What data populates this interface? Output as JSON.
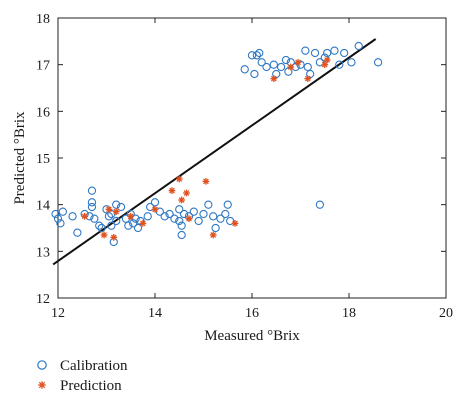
{
  "chart_data": {
    "type": "scatter",
    "title": "",
    "xlabel": "Measured °Brix",
    "ylabel": "Predicted °Brix",
    "xlim": [
      12,
      20
    ],
    "ylim": [
      12,
      18
    ],
    "xticks": [
      "12",
      "14",
      "16",
      "18",
      "20"
    ],
    "yticks": [
      "12",
      "13",
      "14",
      "15",
      "16",
      "17",
      "18"
    ],
    "grid": false,
    "legend_position": "bottom-left, below plot",
    "colors": {
      "calibration": "#2f78c4",
      "prediction": "#e0521e",
      "fit_line": "#111111",
      "axes": "#222222"
    },
    "fit_line": {
      "x": [
        11.9,
        18.55
      ],
      "y": [
        12.72,
        17.55
      ]
    },
    "series": [
      {
        "name": "Calibration",
        "marker": "open-circle",
        "points": [
          [
            11.95,
            13.8
          ],
          [
            12.0,
            13.7
          ],
          [
            12.05,
            13.6
          ],
          [
            12.1,
            13.85
          ],
          [
            12.3,
            13.75
          ],
          [
            12.4,
            13.4
          ],
          [
            12.55,
            13.8
          ],
          [
            12.65,
            13.75
          ],
          [
            12.7,
            14.3
          ],
          [
            12.7,
            14.05
          ],
          [
            12.7,
            13.95
          ],
          [
            12.75,
            13.7
          ],
          [
            12.85,
            13.55
          ],
          [
            12.9,
            13.5
          ],
          [
            13.0,
            13.9
          ],
          [
            13.05,
            13.75
          ],
          [
            13.1,
            13.8
          ],
          [
            13.1,
            13.55
          ],
          [
            13.15,
            13.2
          ],
          [
            13.2,
            13.65
          ],
          [
            13.2,
            14.0
          ],
          [
            13.3,
            13.95
          ],
          [
            13.4,
            13.7
          ],
          [
            13.45,
            13.55
          ],
          [
            13.5,
            13.8
          ],
          [
            13.55,
            13.6
          ],
          [
            13.6,
            13.7
          ],
          [
            13.65,
            13.5
          ],
          [
            13.7,
            13.65
          ],
          [
            13.85,
            13.75
          ],
          [
            13.9,
            13.95
          ],
          [
            14.0,
            14.05
          ],
          [
            14.1,
            13.85
          ],
          [
            14.2,
            13.75
          ],
          [
            14.3,
            13.8
          ],
          [
            14.4,
            13.7
          ],
          [
            14.5,
            13.65
          ],
          [
            14.5,
            13.9
          ],
          [
            14.55,
            13.55
          ],
          [
            14.55,
            13.35
          ],
          [
            14.6,
            13.8
          ],
          [
            14.7,
            13.75
          ],
          [
            14.8,
            13.85
          ],
          [
            14.9,
            13.65
          ],
          [
            15.0,
            13.8
          ],
          [
            15.1,
            14.0
          ],
          [
            15.2,
            13.75
          ],
          [
            15.25,
            13.5
          ],
          [
            15.35,
            13.7
          ],
          [
            15.45,
            13.8
          ],
          [
            15.5,
            14.0
          ],
          [
            15.55,
            13.65
          ],
          [
            15.85,
            16.9
          ],
          [
            16.0,
            17.2
          ],
          [
            16.05,
            16.8
          ],
          [
            16.1,
            17.2
          ],
          [
            16.15,
            17.25
          ],
          [
            16.2,
            17.05
          ],
          [
            16.3,
            16.95
          ],
          [
            16.45,
            17.0
          ],
          [
            16.5,
            16.8
          ],
          [
            16.6,
            16.95
          ],
          [
            16.7,
            17.1
          ],
          [
            16.75,
            16.85
          ],
          [
            16.8,
            17.05
          ],
          [
            16.9,
            16.95
          ],
          [
            17.0,
            17.0
          ],
          [
            17.1,
            17.3
          ],
          [
            17.15,
            16.95
          ],
          [
            17.2,
            16.8
          ],
          [
            17.3,
            17.25
          ],
          [
            17.4,
            17.05
          ],
          [
            17.5,
            17.15
          ],
          [
            17.55,
            17.25
          ],
          [
            17.7,
            17.3
          ],
          [
            17.8,
            17.0
          ],
          [
            17.9,
            17.25
          ],
          [
            18.05,
            17.05
          ],
          [
            18.2,
            17.4
          ],
          [
            18.6,
            17.05
          ],
          [
            17.4,
            14.0
          ]
        ]
      },
      {
        "name": "Prediction",
        "marker": "asterisk",
        "points": [
          [
            12.55,
            13.75
          ],
          [
            12.95,
            13.35
          ],
          [
            13.05,
            13.9
          ],
          [
            13.15,
            13.3
          ],
          [
            13.2,
            13.85
          ],
          [
            13.5,
            13.75
          ],
          [
            13.75,
            13.6
          ],
          [
            14.0,
            13.9
          ],
          [
            14.35,
            14.3
          ],
          [
            14.5,
            14.55
          ],
          [
            14.55,
            14.1
          ],
          [
            14.65,
            14.25
          ],
          [
            14.7,
            13.7
          ],
          [
            15.05,
            14.5
          ],
          [
            15.2,
            13.35
          ],
          [
            15.65,
            13.6
          ],
          [
            16.45,
            16.7
          ],
          [
            16.8,
            16.95
          ],
          [
            16.95,
            17.05
          ],
          [
            17.15,
            16.7
          ],
          [
            17.5,
            17.0
          ],
          [
            17.55,
            17.1
          ]
        ]
      }
    ]
  }
}
